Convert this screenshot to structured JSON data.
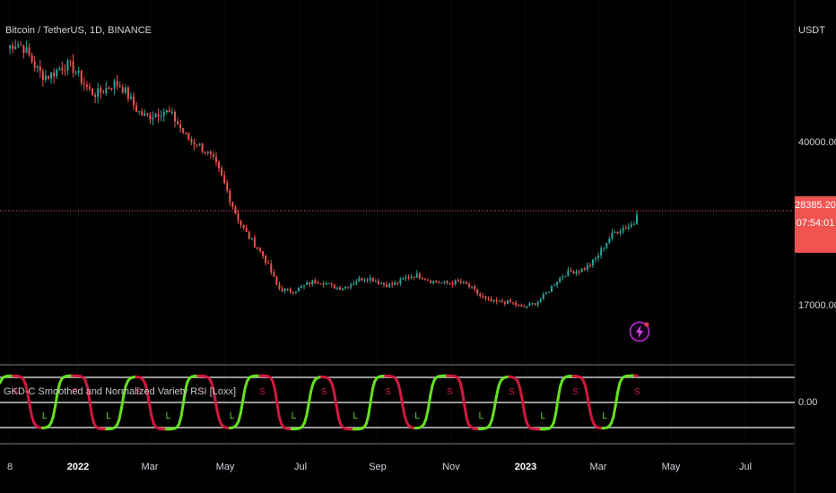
{
  "header": {
    "symbol_title": "Bitcoin / TetherUS, 1D, BINANCE",
    "currency": "USDT"
  },
  "indicator": {
    "title": "GKD-C Smoothed and Normalized Variety RSI [Loxx]",
    "zero_label": "0.00",
    "signal_labels": {
      "short": "S",
      "long": "L"
    },
    "colors": {
      "bullish": "#66e022",
      "bearish": "#d0193f",
      "levels": "#9a9a9a"
    }
  },
  "price_axis": {
    "ticks": [
      "40000.00",
      "17000.00"
    ],
    "current_price": "28385.20",
    "countdown": "07:54:01",
    "current_price_color": "#f05350"
  },
  "time_axis": {
    "ticks": [
      {
        "label": "8",
        "bold": false
      },
      {
        "label": "2022",
        "bold": true
      },
      {
        "label": "Mar",
        "bold": false
      },
      {
        "label": "May",
        "bold": false
      },
      {
        "label": "Jul",
        "bold": false
      },
      {
        "label": "Sep",
        "bold": false
      },
      {
        "label": "Nov",
        "bold": false
      },
      {
        "label": "2023",
        "bold": true
      },
      {
        "label": "Mar",
        "bold": false
      },
      {
        "label": "May",
        "bold": false
      },
      {
        "label": "Jul",
        "bold": false
      }
    ]
  },
  "colors": {
    "background": "#000000",
    "candle_up": "#26a69a",
    "candle_down": "#ef5350",
    "pane_divider": "#555555"
  },
  "icons": {
    "alert": "lightning-alert-icon"
  },
  "chart_data": {
    "type": "candlestick",
    "series_name": "Bitcoin / TetherUS",
    "x": [
      "2021-12-08",
      "2022-01-01",
      "2022-03-01",
      "2022-05-01",
      "2022-07-01",
      "2022-09-01",
      "2022-11-01",
      "2023-01-01",
      "2023-03-01",
      "2023-03-30"
    ],
    "close": [
      49000,
      47000,
      43500,
      38000,
      19300,
      20000,
      20500,
      16600,
      23500,
      28385.2
    ],
    "ylim": [
      15000,
      50500
    ],
    "last_close": 28385.2,
    "oscillator": {
      "name": "GKD-C Smoothed and Normalized Variety RSI [Loxx]",
      "zero_level": 0.0
    }
  }
}
